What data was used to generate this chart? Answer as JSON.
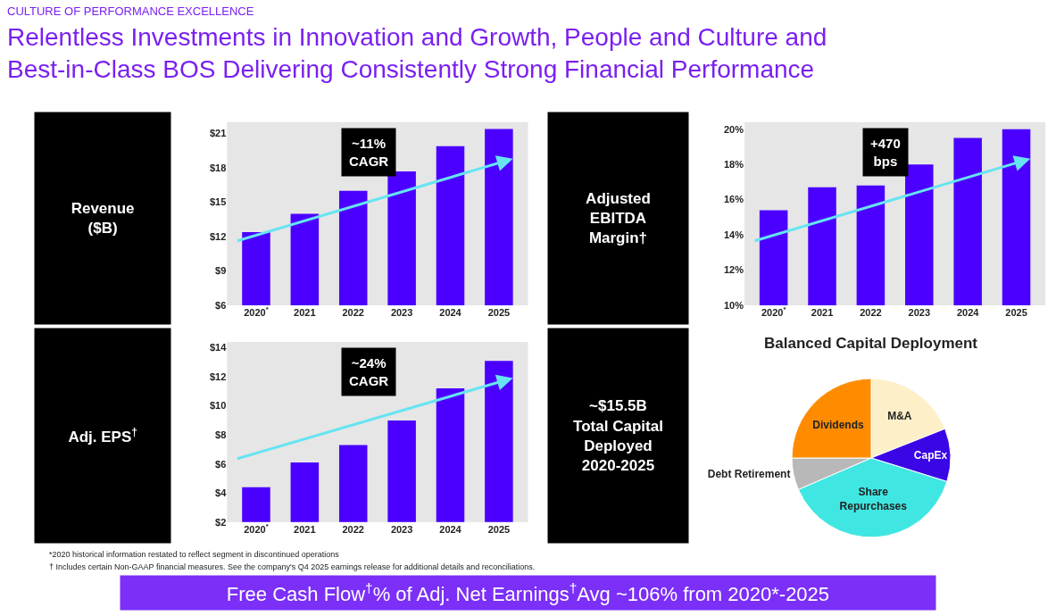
{
  "chart_data": [
    {
      "type": "other",
      "subtitle": "CULTURE OF PERFORMANCE EXCELLENCE",
      "title": "Relentless Investments in Innovation and Growth, People and Culture and\nBest-in-Class BOS Delivering Consistently Strong Financial Performance",
      "annotations": [
        "*2020 historical information restated to reflect segment in discontinued operations",
        "† Includes certain Non-GAAP financial measures. See the company's Q4 2025 earnings release for additional details and reconciliations.",
        "Free Cash Flow$^{†}$% of Adj. Net Earnings$^{†}$Avg ~106% from 2020*-2025"
      ]
    },
    {
      "type": "bar",
      "title": "Revenue\n($B)",
      "categories": [
        "2020$^{*}$",
        "2021",
        "2022",
        "2023",
        "2024",
        "2025"
      ],
      "values": [
        12.4,
        14.0,
        16.0,
        17.7,
        19.9,
        21.4
      ],
      "color": "#4b00ff",
      "ylim": [
        6,
        22
      ],
      "yticks": [
        {
          "value": 6,
          "label": "$6"
        },
        {
          "value": 9,
          "label": "$9"
        },
        {
          "value": 12,
          "label": "$12"
        },
        {
          "value": 15,
          "label": "$15"
        },
        {
          "value": 18,
          "label": "$18"
        },
        {
          "value": 21,
          "label": "$21"
        }
      ],
      "annotations": [
        "~11%\nCAGR"
      ]
    },
    {
      "type": "bar",
      "title": "Adjusted\nEBITDA\nMargin†",
      "categories": [
        "2020$^{*}$",
        "2021",
        "2022",
        "2023",
        "2024",
        "2025"
      ],
      "values": [
        15.4,
        16.7,
        16.8,
        18.0,
        19.5,
        20.0
      ],
      "color": "#4b00ff",
      "ylim": [
        10,
        20.4
      ],
      "yticks": [
        {
          "value": 10,
          "label": "10%"
        },
        {
          "value": 12,
          "label": "12%"
        },
        {
          "value": 14,
          "label": "14%"
        },
        {
          "value": 16,
          "label": "16%"
        },
        {
          "value": 18,
          "label": "18%"
        },
        {
          "value": 20,
          "label": "20%"
        }
      ],
      "annotations": [
        "+470\nbps"
      ]
    },
    {
      "type": "bar",
      "title": "Adj. EPS$^{†}$",
      "categories": [
        "2020$^{*}$",
        "2021",
        "2022",
        "2023",
        "2024",
        "2025"
      ],
      "values": [
        4.4,
        6.1,
        7.3,
        9.0,
        11.2,
        13.1
      ],
      "color": "#4b00ff",
      "ylim": [
        2,
        14.4
      ],
      "yticks": [
        {
          "value": 2,
          "label": "$2"
        },
        {
          "value": 4,
          "label": "$4"
        },
        {
          "value": 6,
          "label": "$6"
        },
        {
          "value": 8,
          "label": "$8"
        },
        {
          "value": 10,
          "label": "$10"
        },
        {
          "value": 12,
          "label": "$12"
        },
        {
          "value": 14,
          "label": "$14"
        }
      ],
      "annotations": [
        "~24%\nCAGR"
      ]
    },
    {
      "type": "pie",
      "title": "Balanced Capital Deployment",
      "subtitle": "~$15.5B\nTotal Capital\nDeployed\n2020-2025",
      "categories": [
        "M&A",
        "CapEx",
        "Share\nRepurchases",
        "Debt Retirement",
        "Dividends"
      ],
      "values": [
        19,
        10.8,
        38.7,
        6.5,
        25
      ],
      "colors": [
        "#fdf0c8",
        "#3a06e6",
        "#40e6e2",
        "#b8b8b8",
        "#ff8c00"
      ]
    }
  ]
}
